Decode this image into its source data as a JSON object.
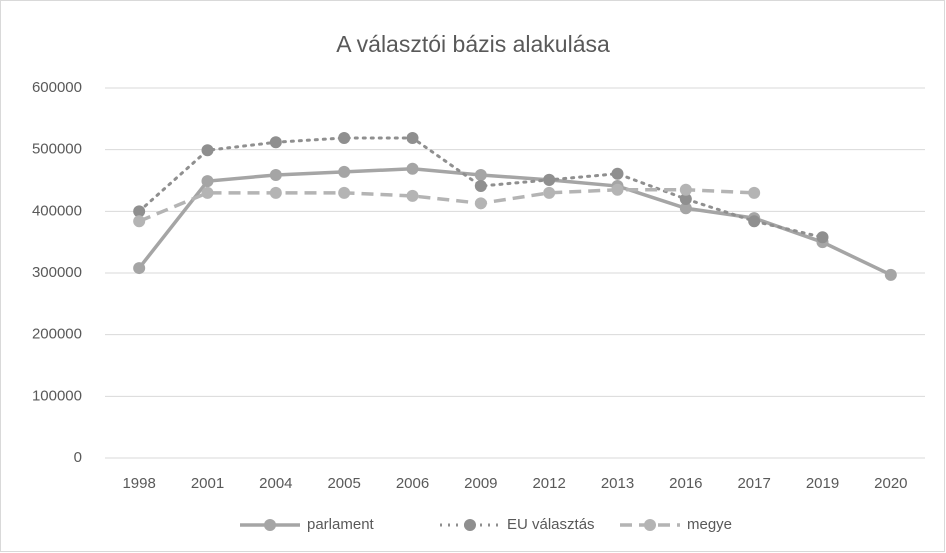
{
  "chart_data": {
    "type": "line",
    "title": "A választói bázis alakulása",
    "categories": [
      "1998",
      "2001",
      "2004",
      "2005",
      "2006",
      "2009",
      "2012",
      "2013",
      "2016",
      "2017",
      "2019",
      "2020"
    ],
    "series": [
      {
        "name": "parlament",
        "color": "#a5a5a5",
        "dash": "solid",
        "values": [
          308000,
          449000,
          459000,
          464000,
          469000,
          459000,
          451000,
          441000,
          405000,
          389000,
          350000,
          297000
        ]
      },
      {
        "name": "EU választás",
        "color": "#8f8f8f",
        "dash": "dotted",
        "values": [
          400000,
          499000,
          512000,
          519000,
          519000,
          441000,
          451000,
          461000,
          420000,
          384000,
          358000,
          null
        ]
      },
      {
        "name": "megye",
        "color": "#b4b4b4",
        "dash": "dashed",
        "values": [
          384000,
          430000,
          430000,
          430000,
          425000,
          413000,
          430000,
          435000,
          435000,
          430000,
          null,
          null
        ]
      }
    ],
    "ylim": [
      0,
      600000
    ],
    "yticks": [
      0,
      100000,
      200000,
      300000,
      400000,
      500000,
      600000
    ],
    "grid": true,
    "legend": "bottom"
  }
}
